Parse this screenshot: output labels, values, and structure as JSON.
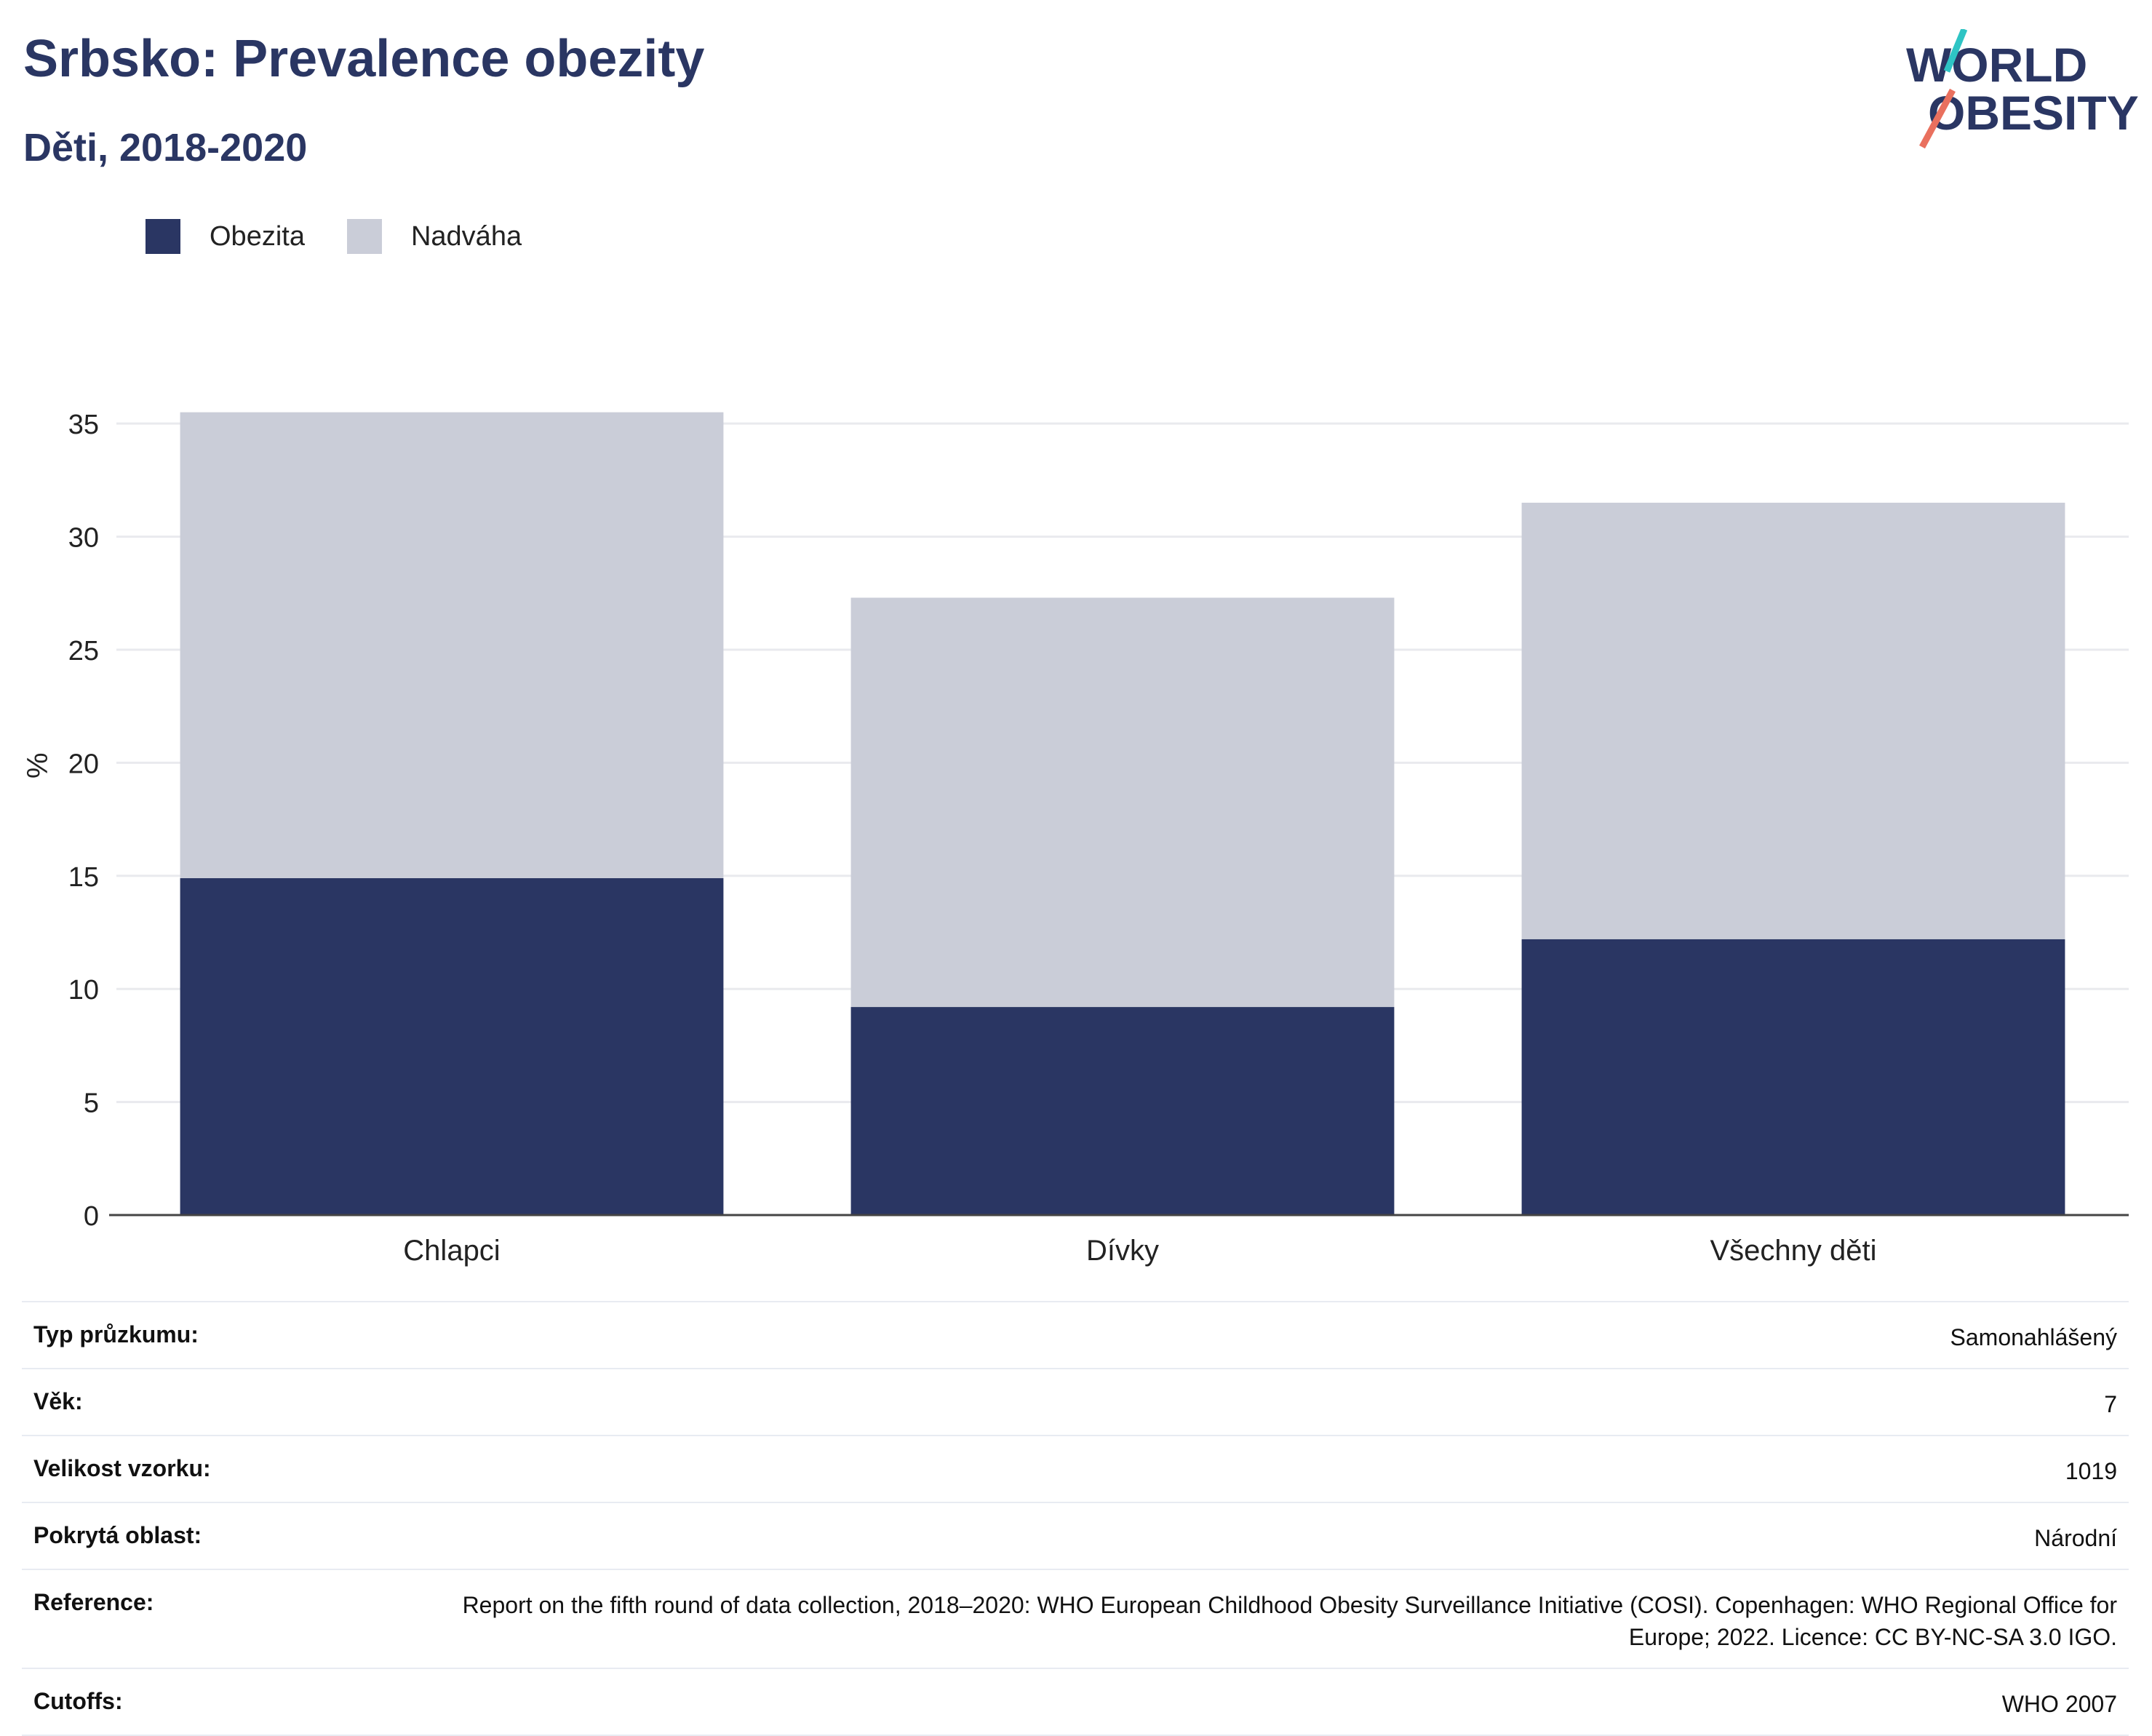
{
  "header": {
    "title": "Srbsko: Prevalence obezity",
    "subtitle": "Děti, 2018-2020"
  },
  "logo": {
    "line1": "WORLD",
    "line2": "OBESITY",
    "colors": {
      "text": "#2a3663",
      "accent_teal": "#2ec4c4",
      "accent_coral": "#e9705e"
    }
  },
  "legend": [
    {
      "label": "Obezita",
      "color": "#2a3663"
    },
    {
      "label": "Nadváha",
      "color": "#cacdd8"
    }
  ],
  "chart_data": {
    "type": "bar",
    "stacked": true,
    "categories": [
      "Chlapci",
      "Dívky",
      "Všechny děti"
    ],
    "series": [
      {
        "name": "Obezita",
        "values": [
          14.9,
          9.2,
          12.2
        ],
        "color": "#2a3663"
      },
      {
        "name": "Nadváha",
        "values": [
          20.6,
          18.1,
          19.3
        ],
        "color": "#cacdd8"
      }
    ],
    "ylabel": "%",
    "ylim": [
      0,
      37
    ],
    "yticks": [
      0,
      5,
      10,
      15,
      20,
      25,
      30,
      35
    ],
    "grid": true,
    "legend_position": "top-left"
  },
  "info_table": [
    {
      "label": "Typ průzkumu:",
      "value": "Samonahlášený"
    },
    {
      "label": "Věk:",
      "value": "7"
    },
    {
      "label": "Velikost vzorku:",
      "value": "1019"
    },
    {
      "label": "Pokrytá oblast:",
      "value": "Národní"
    },
    {
      "label": "Reference:",
      "value": "Report on the fifth round of data collection, 2018–2020: WHO European Childhood Obesity Surveillance Initiative (COSI). Copenhagen: WHO Regional Office for Europe; 2022. Licence: CC BY-NC-SA 3.0 IGO."
    },
    {
      "label": "Cutoffs:",
      "value": "WHO 2007"
    }
  ]
}
